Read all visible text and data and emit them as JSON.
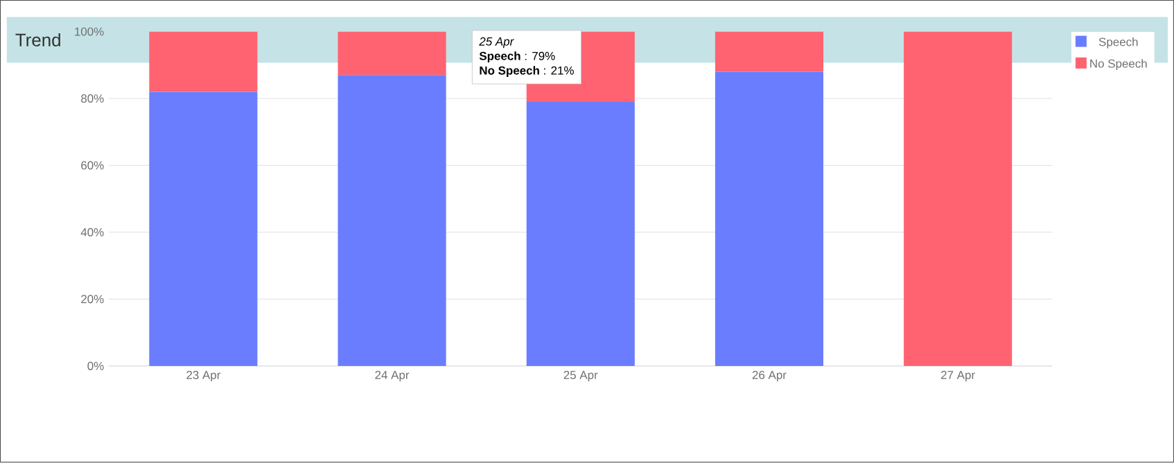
{
  "chart_data": {
    "type": "bar",
    "title": "Trend",
    "stacked": true,
    "categories": [
      "23 Apr",
      "24 Apr",
      "25 Apr",
      "26 Apr",
      "27 Apr"
    ],
    "series": [
      {
        "name": "Speech",
        "color": "#6a7dfe",
        "values": [
          82,
          87,
          79,
          88,
          0
        ]
      },
      {
        "name": "No Speech",
        "color": "#ff6371",
        "values": [
          18,
          13,
          21,
          12,
          100
        ]
      }
    ],
    "ylim": [
      0,
      100
    ],
    "yticks": [
      {
        "value": 0,
        "label": "0%"
      },
      {
        "value": 20,
        "label": "20%"
      },
      {
        "value": 40,
        "label": "40%"
      },
      {
        "value": 60,
        "label": "60%"
      },
      {
        "value": 80,
        "label": "80%"
      },
      {
        "value": 100,
        "label": "100%"
      }
    ],
    "grid": "y",
    "legend": "top right",
    "annotations": [
      "25 Apr",
      "**Speech** : 79%",
      "**No Speech** : 21%"
    ]
  }
}
